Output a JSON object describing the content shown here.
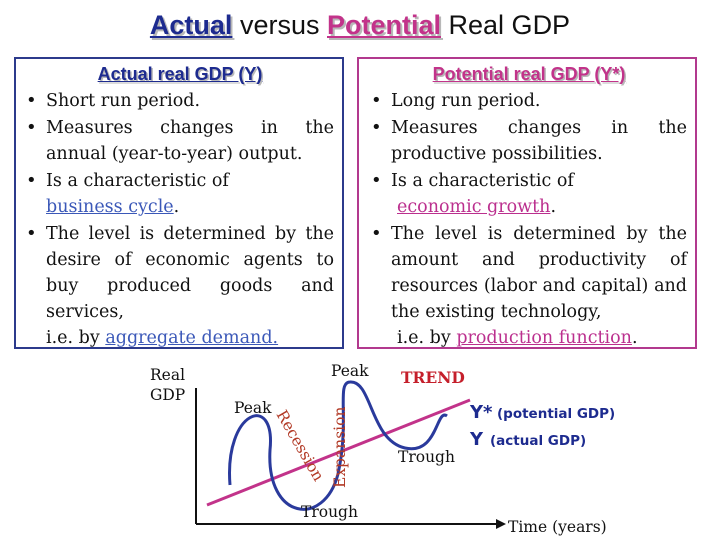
{
  "title": {
    "actual": "Actual",
    "versus": "versus",
    "potential": "Potential",
    "rest": "Real GDP"
  },
  "left_box": {
    "heading": "Actual real GDP (Y)",
    "b1": "Short run period.",
    "b2": "Measures changes in the annual (year-to-year) output.",
    "b3_text": "Is a characteristic of",
    "b3_link": "business cycle",
    "b3_end": ".",
    "b4_text": "The level is determined by the desire of economic agents to buy produced goods and services,",
    "b4_ie": "i.e. by",
    "b4_link": "aggregate demand."
  },
  "right_box": {
    "heading": "Potential real GDP (Y*)",
    "b1": "Long run period.",
    "b2": "Measures changes in the productive possibilities.",
    "b3_text": "Is a characteristic of",
    "b3_link": "economic growth",
    "b3_end": ".",
    "b4_text": "The level is determined by the amount and productivity of resources (labor and capital) and the existing technology,",
    "b4_ie": "i.e. by",
    "b4_link": "production function",
    "b4_end": "."
  },
  "graph": {
    "y_axis_label_1": "Real",
    "y_axis_label_2": "GDP",
    "x_axis_label": "Time (years)",
    "peak_left": "Peak",
    "peak_top": "Peak",
    "trough_bottom": "Trough",
    "trough_right": "Trough",
    "recession": "Recession",
    "expansion": "Expansion",
    "trend": "TREND",
    "ystar_symbol": "Y*",
    "ystar_desc": "(potential GDP)",
    "y_symbol": "Y",
    "y_desc": "(actual GDP)",
    "colors": {
      "actual_curve": "#2a3a9c",
      "trend_line": "#c2338a",
      "trend_text": "#c51f2b",
      "legend_text": "#1d2b8f"
    }
  }
}
